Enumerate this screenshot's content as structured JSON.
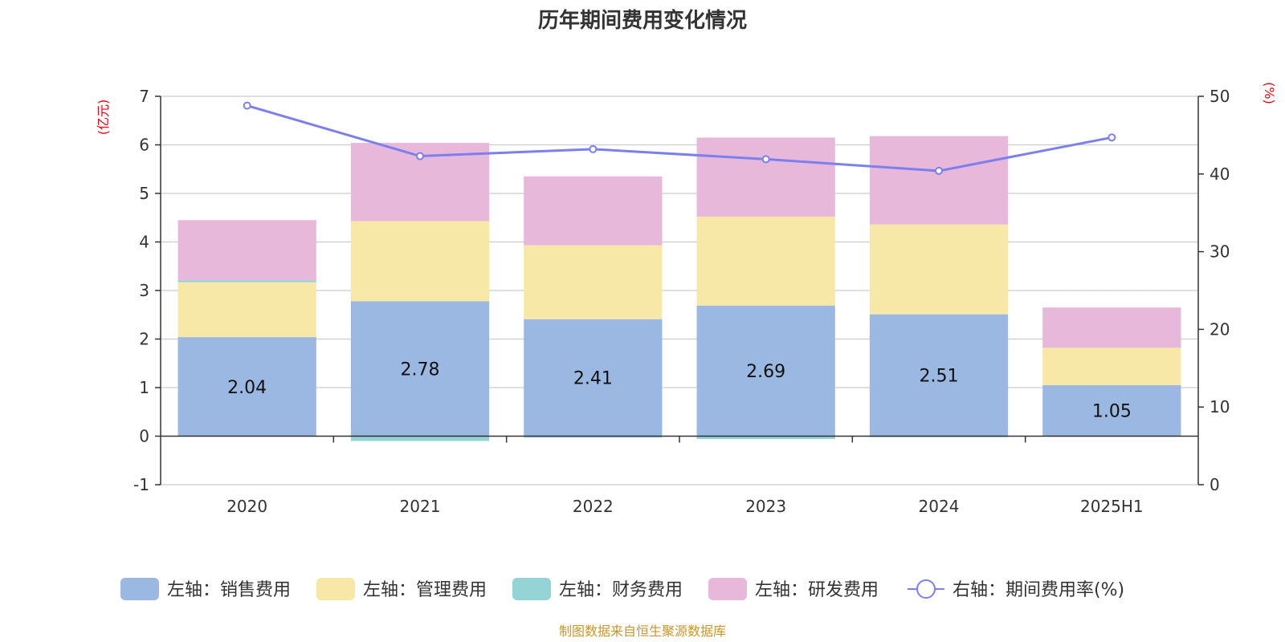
{
  "chart_data": {
    "type": "bar",
    "title": "历年期间费用变化情况",
    "categories": [
      "2020",
      "2021",
      "2022",
      "2023",
      "2024",
      "2025H1"
    ],
    "left_axis": {
      "unit": "(亿元)",
      "ylim": [
        -1,
        7
      ],
      "ticks": [
        "-1",
        "0",
        "1",
        "2",
        "3",
        "4",
        "5",
        "6",
        "7"
      ]
    },
    "right_axis": {
      "unit": "(%)",
      "ylim": [
        0,
        50
      ],
      "ticks": [
        "0",
        "10",
        "20",
        "30",
        "40",
        "50"
      ]
    },
    "grid": true,
    "legend_position": "bottom",
    "series": [
      {
        "name": "左轴：销售费用",
        "color": "#9bb8e2",
        "values": [
          2.04,
          2.78,
          2.41,
          2.69,
          2.51,
          1.05
        ],
        "data_labels": [
          "2.04",
          "2.78",
          "2.41",
          "2.69",
          "2.51",
          "1.05"
        ]
      },
      {
        "name": "左轴：管理费用",
        "color": "#f8e8a8",
        "values": [
          1.13,
          1.65,
          1.52,
          1.83,
          1.85,
          0.77
        ]
      },
      {
        "name": "左轴：财务费用",
        "color": "#94d4d6",
        "values": [
          0.04,
          -0.1,
          -0.03,
          -0.06,
          -0.02,
          -0.01
        ]
      },
      {
        "name": "左轴：研发费用",
        "color": "#e8b8da",
        "values": [
          1.24,
          1.61,
          1.42,
          1.63,
          1.82,
          0.83
        ]
      }
    ],
    "line": {
      "name": "右轴：期间费用率(%)",
      "color": "#7b7ff0",
      "values": [
        48.8,
        42.3,
        43.2,
        41.9,
        40.4,
        44.7
      ]
    },
    "source": "制图数据来自恒生聚源数据库"
  }
}
